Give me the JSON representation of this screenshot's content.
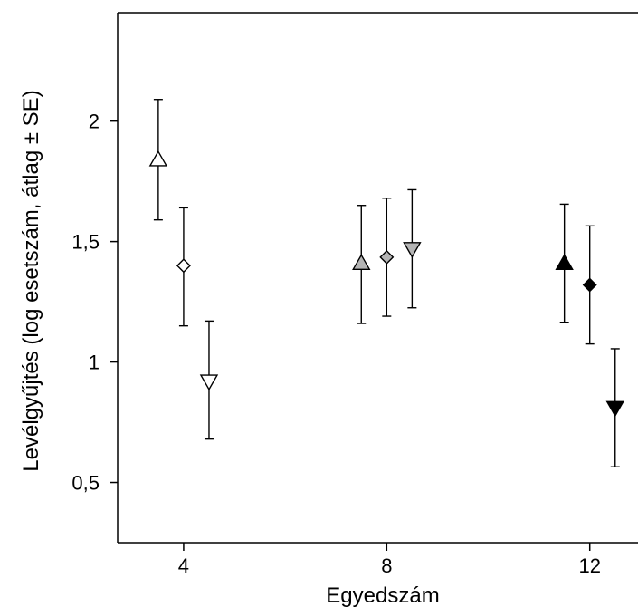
{
  "chart_data": {
    "type": "scatter",
    "title": "",
    "xlabel": "Egyedszám",
    "ylabel": "Levélgyűjtés (log esetszám, átlag ± SE)",
    "xlim": [
      2.7,
      12.95
    ],
    "ylim": [
      0.25,
      2.45
    ],
    "grid": false,
    "legend": "none",
    "x_ticks": [
      4,
      8,
      12
    ],
    "x_tick_labels": [
      "4",
      "8",
      "12"
    ],
    "y_ticks": [
      0.5,
      1,
      1.5,
      2
    ],
    "y_tick_labels": [
      "0,5",
      "1",
      "1,5",
      "2"
    ],
    "series": [
      {
        "marker": "triangle-up",
        "color": "#ffffff",
        "points": [
          {
            "x": 3.5,
            "y": 1.84,
            "low": 1.59,
            "high": 2.09
          },
          {
            "x": 7.5,
            "y": 1.41,
            "low": 1.16,
            "high": 1.65
          },
          {
            "x": 11.5,
            "y": 1.41,
            "low": 1.165,
            "high": 1.655
          }
        ]
      },
      {
        "marker": "diamond",
        "color": "#ffffff",
        "points": [
          {
            "x": 4,
            "y": 1.4,
            "low": 1.15,
            "high": 1.64
          },
          {
            "x": 8,
            "y": 1.435,
            "low": 1.19,
            "high": 1.68
          },
          {
            "x": 12,
            "y": 1.32,
            "low": 1.075,
            "high": 1.565
          }
        ]
      },
      {
        "marker": "triangle-down",
        "color": "#ffffff",
        "points": [
          {
            "x": 4.5,
            "y": 0.92,
            "low": 0.68,
            "high": 1.17
          },
          {
            "x": 8.5,
            "y": 1.47,
            "low": 1.225,
            "high": 1.715
          },
          {
            "x": 12.5,
            "y": 0.81,
            "low": 0.565,
            "high": 1.055
          }
        ]
      }
    ],
    "group_colors": [
      "#ffffff",
      "#b4b4b4",
      "#000000"
    ]
  }
}
